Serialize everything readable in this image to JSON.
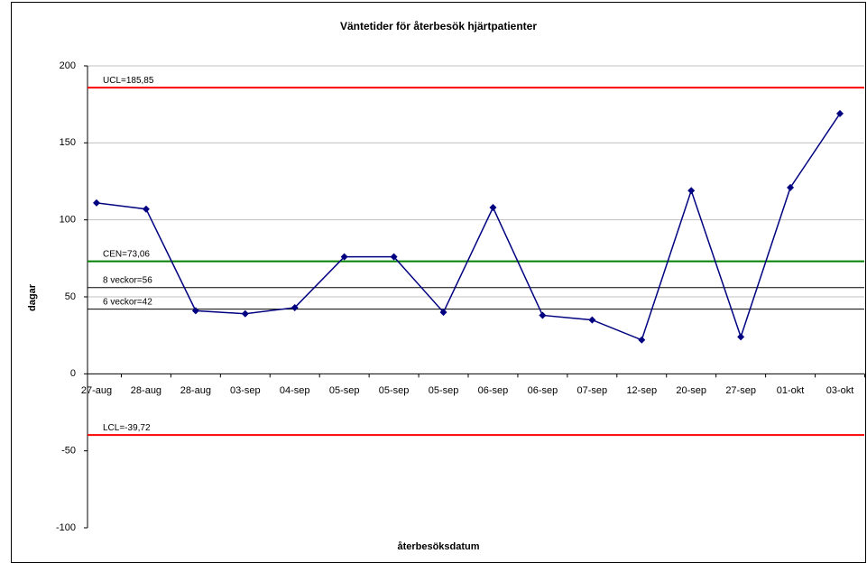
{
  "chart_data": {
    "type": "line",
    "title": "Väntetider för återbesök hjärtpatienter",
    "x_label": "återbesöksdatum",
    "y_label": "dagar",
    "categories": [
      "27-aug",
      "28-aug",
      "28-aug",
      "03-sep",
      "04-sep",
      "05-sep",
      "05-sep",
      "05-sep",
      "06-sep",
      "06-sep",
      "07-sep",
      "12-sep",
      "20-sep",
      "27-sep",
      "01-okt",
      "03-okt"
    ],
    "series": [
      {
        "name": "dagar",
        "color": "#000080",
        "values": [
          111,
          107,
          41,
          39,
          43,
          76,
          76,
          40,
          108,
          38,
          35,
          22,
          119,
          24,
          121,
          169
        ]
      }
    ],
    "reference_lines": [
      {
        "value": 185.85,
        "label": "UCL=185,85",
        "color": "#ff0000"
      },
      {
        "value": 73.06,
        "label": "CEN=73,06",
        "color": "#008000"
      },
      {
        "value": 56,
        "label": "8 veckor=56",
        "color": "#000000"
      },
      {
        "value": 42,
        "label": "6 veckor=42",
        "color": "#000000"
      },
      {
        "value": -39.72,
        "label": "LCL=-39,72",
        "color": "#ff0000"
      }
    ],
    "ylim": [
      -100,
      200
    ],
    "yticks": [
      -100,
      -50,
      0,
      50,
      100,
      150,
      200
    ],
    "grid": true
  }
}
